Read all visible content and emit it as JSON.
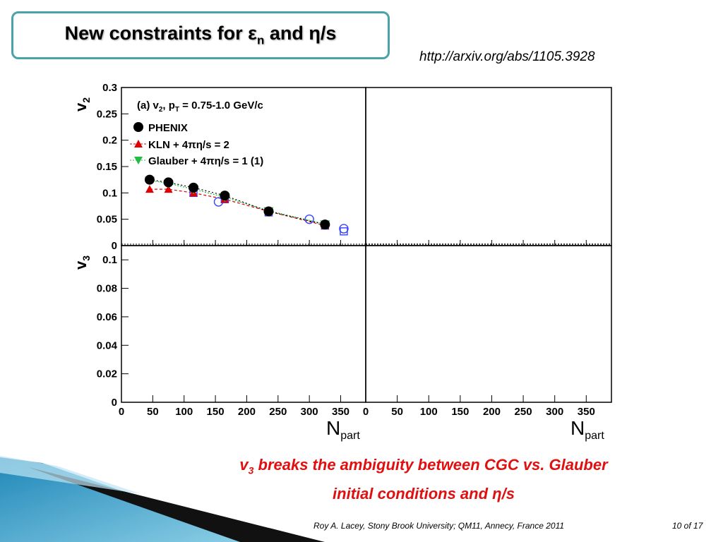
{
  "slide": {
    "title_main": "New constraints for ε",
    "title_sub": "n",
    "title_rest": " and η/s",
    "url": "http://arxiv.org/abs/1105.3928",
    "caption_v": "v",
    "caption_sub": "3",
    "caption_line1_rest": " breaks the ambiguity between CGC vs. Glauber",
    "caption_line2": "initial conditions and η/s",
    "footer_left": "Roy A. Lacey, Stony Brook University; QM11, Annecy, France 2011",
    "footer_right": "10 of 17"
  },
  "colors": {
    "title_border": "#4aa3a8",
    "caption": "#e01010",
    "phenix": "#000000",
    "kln": "#e00000",
    "glauber": "#22bb44",
    "open_markers": "#3344ff"
  },
  "chart_data": {
    "type": "scatter",
    "panel_v2": {
      "annotation": "(a) v2, pT = 0.75-1.0 GeV/c",
      "annotation_parts": {
        "pre": "(a) v",
        "sub1": "2",
        "mid": ", p",
        "sub2": "T",
        "post": " = 0.75-1.0 GeV/c"
      },
      "ylabel": "v",
      "ylabel_sub": "2",
      "ylim": [
        0,
        0.3
      ],
      "yticks": [
        "0",
        "0.05",
        "0.1",
        "0.15",
        "0.2",
        "0.25",
        "0.3"
      ],
      "xlim": [
        0,
        390
      ],
      "legend": [
        "PHENIX",
        "KLN + 4πη/s = 2",
        "Glauber + 4πη/s = 1 (1)"
      ],
      "legend_position": "top-left",
      "series": [
        {
          "name": "PHENIX",
          "marker": "filled-circle",
          "x": [
            45,
            75,
            115,
            165,
            235,
            325
          ],
          "y": [
            0.125,
            0.12,
            0.11,
            0.095,
            0.065,
            0.04
          ]
        },
        {
          "name": "KLN + 4πη/s = 2",
          "marker": "filled-triangle-up",
          "x": [
            45,
            75,
            115,
            165,
            235,
            325
          ],
          "y": [
            0.107,
            0.107,
            0.1,
            0.088,
            0.065,
            0.038
          ]
        },
        {
          "name": "Glauber + 4πη/s = 1 (1)",
          "marker": "filled-triangle-down",
          "x": [
            45,
            75,
            115,
            165,
            235,
            325
          ],
          "y": [
            0.124,
            0.118,
            0.107,
            0.092,
            0.066,
            0.041
          ]
        },
        {
          "marker": "open-circle",
          "x": [
            155,
            300,
            355
          ],
          "y": [
            0.083,
            0.05,
            0.032
          ]
        },
        {
          "marker": "open-square",
          "x": [
            115,
            165,
            235,
            325,
            355
          ],
          "y": [
            0.1,
            0.088,
            0.063,
            0.038,
            0.027
          ]
        }
      ]
    },
    "panel_v3": {
      "ylabel": "v",
      "ylabel_sub": "3",
      "ylim": [
        0,
        0.11
      ],
      "yticks": [
        "0",
        "0.02",
        "0.04",
        "0.06",
        "0.08",
        "0.1"
      ],
      "xlim": [
        0,
        390
      ],
      "series": []
    },
    "xticks": [
      "0",
      "50",
      "100",
      "150",
      "200",
      "250",
      "300",
      "350"
    ],
    "xlabel": "N",
    "xlabel_sub": "part"
  }
}
